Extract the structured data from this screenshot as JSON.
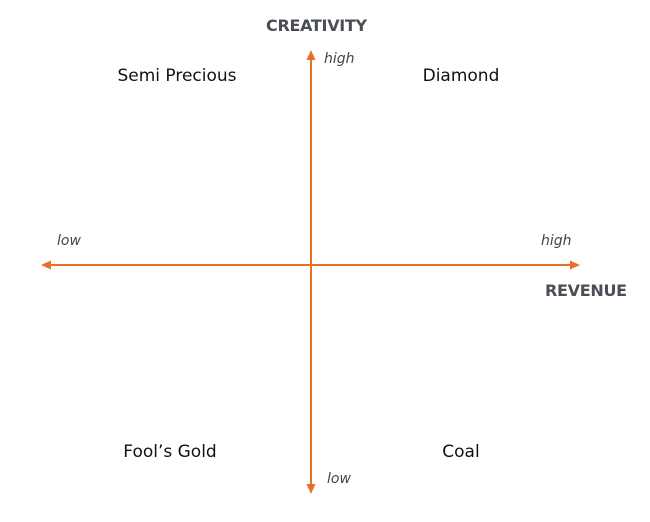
{
  "axes": {
    "vertical": {
      "title": "CREATIVITY",
      "high_label": "high",
      "low_label": "low"
    },
    "horizontal": {
      "title": "REVENUE",
      "high_label": "high",
      "low_label": "low"
    }
  },
  "quadrants": {
    "top_left": "Semi Precious",
    "top_right": "Diamond",
    "bottom_left": "Fool’s Gold",
    "bottom_right": "Coal"
  },
  "colors": {
    "axis_line": "#e8702a",
    "axis_title": "#4a4f56",
    "tick_label": "#444444",
    "quadrant_label": "#111111",
    "background": "#ffffff"
  }
}
